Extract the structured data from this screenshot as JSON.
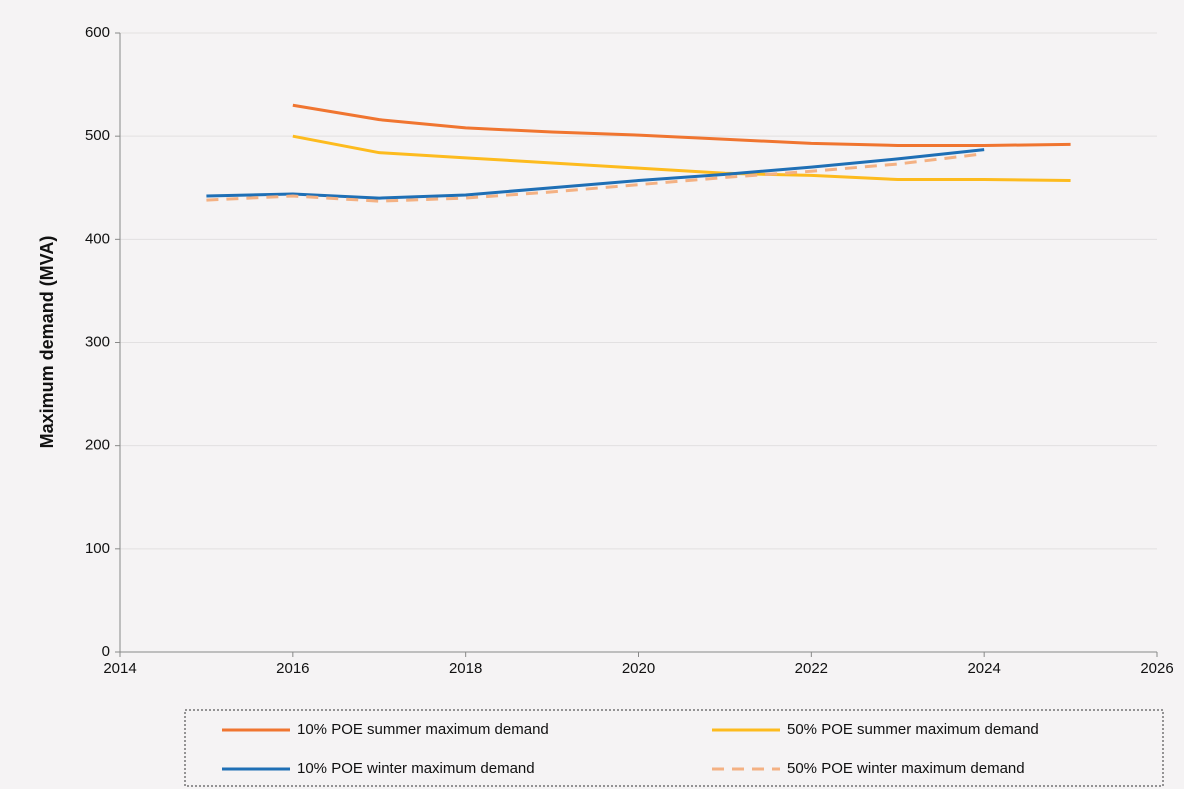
{
  "chart_data": {
    "type": "line",
    "y_label": "Maximum demand (MVA)",
    "x": [
      2015,
      2016,
      2017,
      2018,
      2019,
      2020,
      2021,
      2022,
      2023,
      2024,
      2025
    ],
    "series": [
      {
        "name": "10% POE summer maximum demand",
        "color": "#f07530",
        "dash": false,
        "values": [
          null,
          530,
          516,
          508,
          504,
          501,
          497,
          493,
          491,
          491,
          492
        ]
      },
      {
        "name": "50% POE summer maximum demand",
        "color": "#fdbb1e",
        "dash": false,
        "values": [
          null,
          500,
          484,
          479,
          474,
          469,
          464,
          462,
          458,
          458,
          457
        ]
      },
      {
        "name": "10% POE winter maximum demand",
        "color": "#1f6fb5",
        "dash": false,
        "values": [
          442,
          444,
          440,
          443,
          450,
          457,
          463,
          470,
          478,
          487,
          null
        ]
      },
      {
        "name": "50% POE winter maximum demand",
        "color": "#f4b183",
        "dash": true,
        "values": [
          438,
          442,
          437,
          440,
          446,
          453,
          460,
          466,
          473,
          483,
          null
        ]
      }
    ],
    "xlim": [
      2014,
      2026
    ],
    "xticks": [
      2014,
      2016,
      2018,
      2020,
      2022,
      2024,
      2026
    ],
    "ylim": [
      0,
      600
    ],
    "yticks": [
      0,
      100,
      200,
      300,
      400,
      500,
      600
    ],
    "grid": true,
    "legend": "bottom"
  }
}
